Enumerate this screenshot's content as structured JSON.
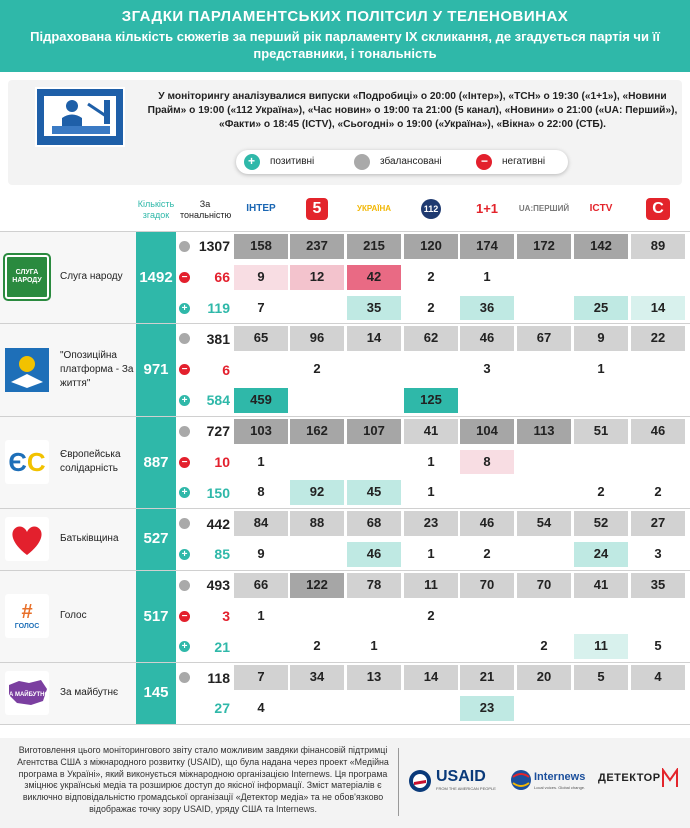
{
  "header": {
    "title": "ЗГАДКИ ПАРЛАМЕНТСЬКИХ ПОЛІТСИЛ У ТЕЛЕНОВИНАХ",
    "subtitle": "Підрахована кількість сюжетів за перший рік парламенту IX скликання, де згадується партія чи її представники, і тональність"
  },
  "monitoring_text": "У моніторингу аналізувалися випуски «Подробиці» о 20:00 («Інтер»), «ТСН» о 19:30 («1+1»), «Новини Прайм» о 19:00 («112 Україна»), «Час новин» о 19:00 та 21:00 (5 канал), «Новини» о 21:00 («UA: Перший»), «Факти» о 18:45 (ICTV), «Сьогодні» о 19:00 («Україна»), «Вікна» о 22:00 (СТБ).",
  "legend": {
    "positive": "позитивні",
    "balanced": "збалансовані",
    "negative": "негативні"
  },
  "column_headers": {
    "total": "Кількість згадок",
    "tone": "За тональністю"
  },
  "channels": [
    {
      "label": "ІНТЕР",
      "color": "#1a66b3"
    },
    {
      "label": "5",
      "color": "#e3242b"
    },
    {
      "label": "УКРАЇНА",
      "color": "#f2b705"
    },
    {
      "label": "112",
      "color": "#1f3a70"
    },
    {
      "label": "1+1",
      "color": "#e3242b"
    },
    {
      "label": "UA:ПЕРШИЙ",
      "color": "#7a7a7a"
    },
    {
      "label": "ICTV",
      "color": "#e3242b"
    },
    {
      "label": "С",
      "color": "#e3242b"
    }
  ],
  "colors": {
    "balanced": "#b3b3b3",
    "negative": "#f3cbd3",
    "positive": "#c4ebe6",
    "accent": "#2fb8a9",
    "neg_dot": "#e3202d"
  },
  "chart_data": {
    "type": "table",
    "title": "ЗГАДКИ ПАРЛАМЕНТСЬКИХ ПОЛІТСИЛ У ТЕЛЕНОВИНАХ",
    "columns": [
      "ІНТЕР",
      "5",
      "УКРАЇНА",
      "112",
      "1+1",
      "UA:ПЕРШИЙ",
      "ICTV",
      "СТБ"
    ],
    "parties": [
      {
        "name": "Слуга народу",
        "icon_text": "СЛУГА НАРОДУ",
        "icon_color": "#2a8a3f",
        "total": "1492",
        "rows": [
          {
            "tone": "balanced",
            "sum": "1307",
            "values": [
              "158",
              "237",
              "215",
              "120",
              "174",
              "172",
              "142",
              "89"
            ]
          },
          {
            "tone": "negative",
            "sum": "66",
            "values": [
              "9",
              "12",
              "42",
              "2",
              "1",
              "",
              "",
              ""
            ]
          },
          {
            "tone": "positive",
            "sum": "119",
            "values": [
              "7",
              "",
              "35",
              "2",
              "36",
              "",
              "25",
              "14"
            ]
          }
        ]
      },
      {
        "name": "\"Опозиційна платформа - За життя\"",
        "icon_text": "",
        "icon_color": "#1e6fb8",
        "total": "971",
        "rows": [
          {
            "tone": "balanced",
            "sum": "381",
            "values": [
              "65",
              "96",
              "14",
              "62",
              "46",
              "67",
              "9",
              "22"
            ]
          },
          {
            "tone": "negative",
            "sum": "6",
            "values": [
              "",
              "2",
              "",
              "",
              "3",
              "",
              "1",
              ""
            ]
          },
          {
            "tone": "positive",
            "sum": "584",
            "values": [
              "459",
              "",
              "",
              "125",
              "",
              "",
              "",
              ""
            ]
          }
        ]
      },
      {
        "name": "Європейська солідарність",
        "icon_text": "ЄС",
        "icon_color": "#ffffff",
        "total": "887",
        "rows": [
          {
            "tone": "balanced",
            "sum": "727",
            "values": [
              "103",
              "162",
              "107",
              "41",
              "104",
              "113",
              "51",
              "46"
            ]
          },
          {
            "tone": "negative",
            "sum": "10",
            "values": [
              "1",
              "",
              "",
              "1",
              "8",
              "",
              "",
              ""
            ]
          },
          {
            "tone": "positive",
            "sum": "150",
            "values": [
              "8",
              "92",
              "45",
              "1",
              "",
              "",
              "2",
              "2"
            ]
          }
        ]
      },
      {
        "name": "Батьківщина",
        "icon_text": "",
        "icon_color": "#ffffff",
        "total": "527",
        "rows": [
          {
            "tone": "balanced",
            "sum": "442",
            "values": [
              "84",
              "88",
              "68",
              "23",
              "46",
              "54",
              "52",
              "27"
            ]
          },
          {
            "tone": "positive",
            "sum": "85",
            "values": [
              "9",
              "",
              "46",
              "1",
              "2",
              "",
              "24",
              "3"
            ]
          }
        ]
      },
      {
        "name": "Голос",
        "icon_text": "ГОЛОС",
        "icon_color": "#ffffff",
        "total": "517",
        "rows": [
          {
            "tone": "balanced",
            "sum": "493",
            "values": [
              "66",
              "122",
              "78",
              "11",
              "70",
              "70",
              "41",
              "35"
            ]
          },
          {
            "tone": "negative",
            "sum": "3",
            "values": [
              "1",
              "",
              "",
              "2",
              "",
              "",
              "",
              ""
            ]
          },
          {
            "tone": "positive",
            "sum": "21",
            "values": [
              "",
              "2",
              "1",
              "",
              "",
              "2",
              "11",
              "5"
            ]
          }
        ]
      },
      {
        "name": "За майбутнє",
        "icon_text": "ЗА МАЙБУТНЄ",
        "icon_color": "#ffffff",
        "total": "145",
        "rows": [
          {
            "tone": "balanced",
            "sum": "118",
            "values": [
              "7",
              "34",
              "13",
              "14",
              "21",
              "20",
              "5",
              "4"
            ]
          },
          {
            "tone": "positive_nodot",
            "sum": "27",
            "values": [
              "4",
              "",
              "",
              "",
              "23",
              "",
              "",
              ""
            ]
          }
        ]
      }
    ]
  },
  "footer": {
    "text": "Виготовлення цього моніторингового звіту стало можливим завдяки фінансовій підтримці Агентства США з міжнародного розвитку (USAID), що була надана через проект «Медійна програма в Україні», який виконується міжнародною організацією Internews. Ця програма зміцнює українські медіа та розширює доступ до якісної інформації. Зміст матеріалів є виключно відповідальністю громадської організації «Детектор медіа» та не обов'язково відображає точку зору USAID, уряду США та Internews.",
    "logos": {
      "usaid": "USAID",
      "usaid_sub": "FROM THE AMERICAN PEOPLE",
      "internews": "Internews",
      "internews_sub": "Local voices. Global change.",
      "detector": "ДЕТЕКТОР"
    }
  }
}
